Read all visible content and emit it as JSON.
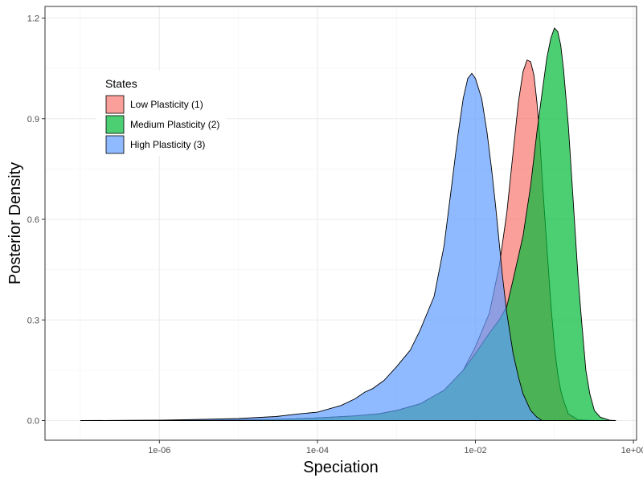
{
  "chart_data": {
    "type": "area",
    "title": "",
    "xlabel": "Speciation",
    "ylabel": "Posterior Density",
    "x_scale": "log10",
    "xlim": [
      1e-07,
      1.0
    ],
    "ylim": [
      0,
      1.2
    ],
    "x_ticks": [
      1e-06,
      0.0001,
      0.01,
      1.0
    ],
    "x_tick_labels": [
      "1e-06",
      "1e-04",
      "1e-02",
      "1e+00"
    ],
    "y_ticks": [
      0.0,
      0.3,
      0.6,
      0.9,
      1.2
    ],
    "y_tick_labels": [
      "0.0",
      "0.3",
      "0.6",
      "0.9",
      "1.2"
    ],
    "grid": true,
    "legend": {
      "title": "States",
      "position": "top-left"
    },
    "series": [
      {
        "name": "Low Plasticity (1)",
        "color": "#F8766D",
        "points": [
          [
            1e-07,
            0
          ],
          [
            1e-06,
            0.0005
          ],
          [
            1e-05,
            0.002
          ],
          [
            5e-05,
            0.005
          ],
          [
            0.0001,
            0.008
          ],
          [
            0.0003,
            0.014
          ],
          [
            0.0006,
            0.02
          ],
          [
            0.001,
            0.03
          ],
          [
            0.002,
            0.05
          ],
          [
            0.004,
            0.09
          ],
          [
            0.007,
            0.15
          ],
          [
            0.01,
            0.22
          ],
          [
            0.015,
            0.32
          ],
          [
            0.02,
            0.46
          ],
          [
            0.025,
            0.62
          ],
          [
            0.03,
            0.8
          ],
          [
            0.035,
            0.95
          ],
          [
            0.04,
            1.04
          ],
          [
            0.045,
            1.075
          ],
          [
            0.05,
            1.07
          ],
          [
            0.055,
            1.03
          ],
          [
            0.06,
            0.95
          ],
          [
            0.065,
            0.85
          ],
          [
            0.07,
            0.72
          ],
          [
            0.08,
            0.52
          ],
          [
            0.09,
            0.35
          ],
          [
            0.1,
            0.22
          ],
          [
            0.11,
            0.14
          ],
          [
            0.12,
            0.09
          ],
          [
            0.13,
            0.06
          ],
          [
            0.15,
            0.02
          ],
          [
            0.2,
            0.002
          ],
          [
            0.3,
            0
          ]
        ]
      },
      {
        "name": "Medium Plasticity (2)",
        "color": "#00BA38",
        "points": [
          [
            1e-07,
            0
          ],
          [
            1e-06,
            0.0005
          ],
          [
            1e-05,
            0.002
          ],
          [
            5e-05,
            0.005
          ],
          [
            0.0001,
            0.008
          ],
          [
            0.0003,
            0.014
          ],
          [
            0.0006,
            0.02
          ],
          [
            0.001,
            0.03
          ],
          [
            0.002,
            0.05
          ],
          [
            0.004,
            0.09
          ],
          [
            0.007,
            0.15
          ],
          [
            0.01,
            0.2
          ],
          [
            0.015,
            0.26
          ],
          [
            0.02,
            0.3
          ],
          [
            0.025,
            0.34
          ],
          [
            0.03,
            0.42
          ],
          [
            0.04,
            0.55
          ],
          [
            0.05,
            0.7
          ],
          [
            0.06,
            0.86
          ],
          [
            0.07,
            0.98
          ],
          [
            0.08,
            1.08
          ],
          [
            0.09,
            1.14
          ],
          [
            0.1,
            1.17
          ],
          [
            0.11,
            1.16
          ],
          [
            0.12,
            1.12
          ],
          [
            0.13,
            1.05
          ],
          [
            0.15,
            0.88
          ],
          [
            0.17,
            0.68
          ],
          [
            0.2,
            0.42
          ],
          [
            0.22,
            0.3
          ],
          [
            0.25,
            0.15
          ],
          [
            0.28,
            0.08
          ],
          [
            0.32,
            0.03
          ],
          [
            0.38,
            0.01
          ],
          [
            0.5,
            0.001
          ],
          [
            0.6,
            0
          ]
        ]
      },
      {
        "name": "High Plasticity (3)",
        "color": "#619CFF",
        "points": [
          [
            1e-07,
            0
          ],
          [
            1e-06,
            0.001
          ],
          [
            1e-05,
            0.006
          ],
          [
            3e-05,
            0.012
          ],
          [
            6e-05,
            0.02
          ],
          [
            0.0001,
            0.025
          ],
          [
            0.0002,
            0.045
          ],
          [
            0.0003,
            0.065
          ],
          [
            0.0004,
            0.085
          ],
          [
            0.0005,
            0.095
          ],
          [
            0.0007,
            0.12
          ],
          [
            0.001,
            0.16
          ],
          [
            0.0015,
            0.21
          ],
          [
            0.002,
            0.27
          ],
          [
            0.003,
            0.37
          ],
          [
            0.004,
            0.52
          ],
          [
            0.005,
            0.7
          ],
          [
            0.006,
            0.85
          ],
          [
            0.007,
            0.96
          ],
          [
            0.008,
            1.02
          ],
          [
            0.009,
            1.035
          ],
          [
            0.01,
            1.02
          ],
          [
            0.012,
            0.96
          ],
          [
            0.014,
            0.86
          ],
          [
            0.016,
            0.75
          ],
          [
            0.018,
            0.64
          ],
          [
            0.02,
            0.53
          ],
          [
            0.022,
            0.43
          ],
          [
            0.025,
            0.32
          ],
          [
            0.03,
            0.2
          ],
          [
            0.035,
            0.13
          ],
          [
            0.04,
            0.08
          ],
          [
            0.05,
            0.03
          ],
          [
            0.06,
            0.01
          ],
          [
            0.07,
            0
          ]
        ]
      }
    ]
  }
}
